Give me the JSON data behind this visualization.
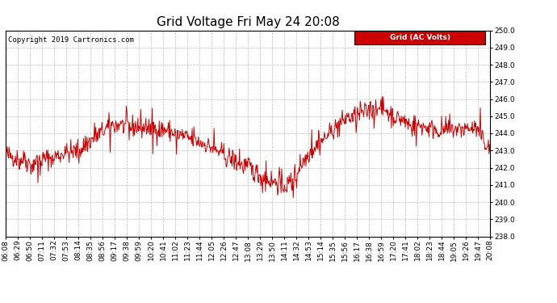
{
  "title": "Grid Voltage Fri May 24 20:08",
  "copyright": "Copyright 2019 Cartronics.com",
  "legend_label": "Grid (AC Volts)",
  "legend_bg": "#cc0000",
  "legend_fg": "#ffffff",
  "line_color": "#cc0000",
  "bg_color": "#ffffff",
  "plot_bg_color": "#ffffff",
  "grid_color": "#bbbbbb",
  "grid_style": "--",
  "ylim": [
    238.0,
    250.0
  ],
  "yticks": [
    238.0,
    239.0,
    240.0,
    241.0,
    242.0,
    243.0,
    244.0,
    245.0,
    246.0,
    247.0,
    248.0,
    249.0,
    250.0
  ],
  "xtick_labels": [
    "06:08",
    "06:29",
    "06:50",
    "07:11",
    "07:32",
    "07:53",
    "08:14",
    "08:35",
    "08:56",
    "09:17",
    "09:38",
    "09:59",
    "10:20",
    "10:41",
    "11:02",
    "11:23",
    "11:44",
    "12:05",
    "12:26",
    "12:47",
    "13:08",
    "13:29",
    "13:50",
    "14:11",
    "14:32",
    "14:53",
    "15:14",
    "15:35",
    "15:56",
    "16:17",
    "16:38",
    "16:59",
    "17:20",
    "17:41",
    "18:02",
    "18:23",
    "18:44",
    "19:05",
    "19:26",
    "19:47",
    "20:08"
  ],
  "title_fontsize": 11,
  "tick_fontsize": 6.5,
  "copyright_fontsize": 6.5,
  "legend_fontsize": 6.5
}
